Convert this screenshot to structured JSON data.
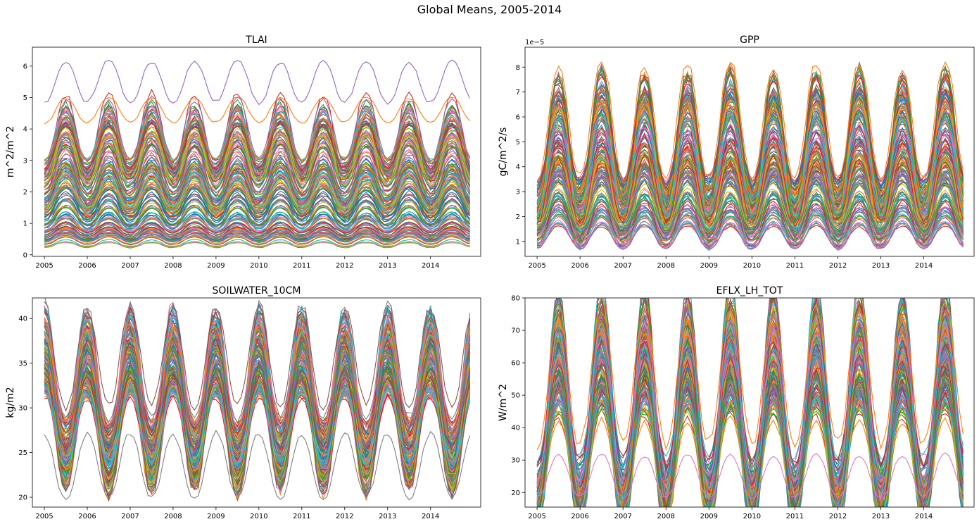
{
  "suptitle": "Global Means, 2005-2014",
  "palette": [
    "#1f77b4",
    "#ff7f0e",
    "#2ca02c",
    "#d62728",
    "#9467bd",
    "#8c564b",
    "#e377c2",
    "#7f7f7f",
    "#bcbd22",
    "#17becf"
  ],
  "chart_data": [
    {
      "id": "tlai",
      "type": "line",
      "title": "TLAI",
      "ylabel": "m^2/m^2",
      "xticks": [
        "2005",
        "2006",
        "2007",
        "2008",
        "2009",
        "2010",
        "2011",
        "2012",
        "2013",
        "2014"
      ],
      "xlim": [
        2004.72,
        2015.17
      ],
      "ylim": [
        -0.05,
        6.6
      ],
      "yticks": [
        "0",
        "1",
        "2",
        "3",
        "4",
        "5",
        "6"
      ],
      "offset_text": "",
      "ensemble": {
        "n_lines": 170,
        "season_peak_month": 7,
        "min_center": 0.3,
        "max_center": 4.0,
        "amplitude_frac": 0.25
      },
      "highlight": [
        {
          "color": "#9467bd",
          "mean": 5.5,
          "amplitude": 0.65,
          "peak_month": 7
        },
        {
          "color": "#ff7f0e",
          "mean": 4.6,
          "amplitude": 0.4,
          "peak_month": 7
        },
        {
          "color": "#e377c2",
          "mean": 0.33,
          "amplitude": 0.05,
          "peak_month": 7
        }
      ]
    },
    {
      "id": "gpp",
      "type": "line",
      "title": "GPP",
      "ylabel": "gC/m^2/s",
      "xticks": [
        "2005",
        "2006",
        "2007",
        "2008",
        "2009",
        "2010",
        "2011",
        "2012",
        "2013",
        "2014"
      ],
      "xlim": [
        2004.72,
        2015.17
      ],
      "ylim": [
        0.4,
        8.8
      ],
      "yticks": [
        "1",
        "2",
        "3",
        "4",
        "5",
        "6",
        "7",
        "8"
      ],
      "offset_text": "1e−5",
      "ensemble": {
        "n_lines": 170,
        "season_peak_month": 7,
        "min_center": 1.2,
        "max_center": 5.3,
        "amplitude_frac": 0.42
      },
      "highlight": [
        {
          "color": "#ff7f0e",
          "mean": 5.8,
          "amplitude": 2.3,
          "peak_month": 7
        },
        {
          "color": "#9467bd",
          "mean": 1.2,
          "amplitude": 0.5,
          "peak_month": 7
        }
      ]
    },
    {
      "id": "soilwater",
      "type": "line",
      "title": "SOILWATER_10CM",
      "ylabel": "kg/m2",
      "xticks": [
        "2005",
        "2006",
        "2007",
        "2008",
        "2009",
        "2010",
        "2011",
        "2012",
        "2013",
        "2014"
      ],
      "xlim": [
        2004.72,
        2015.17
      ],
      "ylim": [
        18.9,
        42.3
      ],
      "yticks": [
        "20",
        "25",
        "30",
        "35",
        "40"
      ],
      "offset_text": "",
      "ensemble": {
        "n_lines": 170,
        "season_peak_month": 1,
        "min_center": 26.5,
        "max_center": 34.0,
        "amplitude_frac": 0.2
      },
      "highlight": [
        {
          "color": "#7f7f7f",
          "mean": 23.5,
          "amplitude": 3.6,
          "peak_month": 1
        },
        {
          "color": "#8c564b",
          "mean": 35.5,
          "amplitude": 5.3,
          "peak_month": 1
        }
      ]
    },
    {
      "id": "eflx",
      "type": "line",
      "title": "EFLX_LH_TOT",
      "ylabel": "W/m^2",
      "xticks": [
        "2005",
        "2006",
        "2007",
        "2008",
        "2009",
        "2010",
        "2011",
        "2012",
        "2013",
        "2014"
      ],
      "xlim": [
        2004.72,
        2015.17
      ],
      "ylim": [
        15.5,
        80.0
      ],
      "yticks": [
        "20",
        "30",
        "40",
        "50",
        "60",
        "70",
        "80"
      ],
      "offset_text": "",
      "ensemble": {
        "n_lines": 170,
        "season_peak_month": 7,
        "min_center": 30.0,
        "max_center": 50.0,
        "amplitude_frac": 0.55
      },
      "highlight": [
        {
          "color": "#ff7f0e",
          "mean": 55.0,
          "amplitude": 20.0,
          "peak_month": 7
        },
        {
          "color": "#e377c2",
          "mean": 25.0,
          "amplitude": 6.5,
          "peak_month": 7
        }
      ]
    }
  ]
}
